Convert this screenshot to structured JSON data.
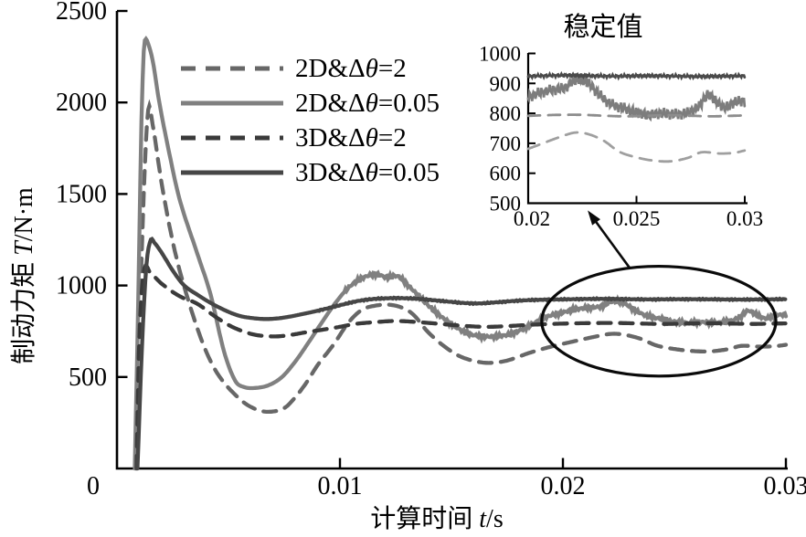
{
  "figure": {
    "background": "#ffffff",
    "axis_color": "#000000"
  },
  "chart_data": [
    {
      "id": "main",
      "type": "line",
      "title": "",
      "xlabel": "计算时间 t/s",
      "ylabel": "制动力矩 T/N·m",
      "xlabel_parts": {
        "prefix": "计算时间 ",
        "italic": "t",
        "suffix": "/s"
      },
      "ylabel_parts": {
        "prefix": "制动力矩 ",
        "italic": "T",
        "suffix": "/N·m"
      },
      "xlim": [
        0,
        0.03
      ],
      "ylim": [
        0,
        2500
      ],
      "x_ticks": [
        0,
        0.01,
        0.02,
        0.03
      ],
      "x_tick_labels": [
        "0",
        "0.01",
        "0.02",
        "0.03"
      ],
      "y_ticks": [
        500,
        1000,
        1500,
        2000,
        2500
      ],
      "y_tick_labels": [
        "500",
        "1000",
        "1500",
        "2000",
        "2500"
      ],
      "grid": false,
      "legend_position": "upper-center-left",
      "series": [
        {
          "name": "2D&Δθ=2",
          "style": "dashed",
          "color": "#676767",
          "inset_color": "#9f9f9f",
          "points": [
            [
              0.00085,
              0
            ],
            [
              0.001,
              700
            ],
            [
              0.0012,
              1500
            ],
            [
              0.0014,
              1960
            ],
            [
              0.0016,
              1880
            ],
            [
              0.002,
              1560
            ],
            [
              0.0025,
              1240
            ],
            [
              0.003,
              1000
            ],
            [
              0.0038,
              700
            ],
            [
              0.0045,
              520
            ],
            [
              0.0055,
              380
            ],
            [
              0.0062,
              325
            ],
            [
              0.0068,
              310
            ],
            [
              0.0075,
              330
            ],
            [
              0.008,
              390
            ],
            [
              0.0085,
              470
            ],
            [
              0.009,
              565
            ],
            [
              0.0097,
              675
            ],
            [
              0.0104,
              800
            ],
            [
              0.011,
              868
            ],
            [
              0.0116,
              890
            ],
            [
              0.0122,
              895
            ],
            [
              0.0128,
              878
            ],
            [
              0.0133,
              840
            ],
            [
              0.0139,
              752
            ],
            [
              0.0146,
              675
            ],
            [
              0.0153,
              618
            ],
            [
              0.016,
              588
            ],
            [
              0.0167,
              577
            ],
            [
              0.0175,
              590
            ],
            [
              0.0185,
              632
            ],
            [
              0.0195,
              667
            ],
            [
              0.0205,
              695
            ],
            [
              0.0215,
              722
            ],
            [
              0.0222,
              736
            ],
            [
              0.0228,
              730
            ],
            [
              0.0235,
              708
            ],
            [
              0.0242,
              672
            ],
            [
              0.025,
              653
            ],
            [
              0.0258,
              642
            ],
            [
              0.0266,
              640
            ],
            [
              0.0274,
              652
            ],
            [
              0.028,
              670
            ],
            [
              0.0288,
              666
            ],
            [
              0.0295,
              668
            ],
            [
              0.03,
              676
            ]
          ]
        },
        {
          "name": "2D&Δθ=0.05",
          "style": "solid",
          "color": "#808080",
          "inset_color": "#7d7d7d",
          "noise": {
            "start": 0.0102,
            "amplitude": 12
          },
          "points": [
            [
              0.0008,
              0
            ],
            [
              0.00095,
              900
            ],
            [
              0.0011,
              1900
            ],
            [
              0.0012,
              2280
            ],
            [
              0.00128,
              2345
            ],
            [
              0.0014,
              2320
            ],
            [
              0.0016,
              2230
            ],
            [
              0.0019,
              2000
            ],
            [
              0.0023,
              1750
            ],
            [
              0.0028,
              1475
            ],
            [
              0.0036,
              1175
            ],
            [
              0.0042,
              950
            ],
            [
              0.0048,
              640
            ],
            [
              0.0053,
              480
            ],
            [
              0.0057,
              445
            ],
            [
              0.0062,
              440
            ],
            [
              0.0068,
              455
            ],
            [
              0.0074,
              500
            ],
            [
              0.008,
              585
            ],
            [
              0.0086,
              690
            ],
            [
              0.0092,
              800
            ],
            [
              0.0098,
              905
            ],
            [
              0.0104,
              990
            ],
            [
              0.011,
              1040
            ],
            [
              0.0116,
              1062
            ],
            [
              0.0121,
              1045
            ],
            [
              0.0126,
              1050
            ],
            [
              0.0131,
              995
            ],
            [
              0.0136,
              935
            ],
            [
              0.0141,
              875
            ],
            [
              0.0147,
              815
            ],
            [
              0.0153,
              765
            ],
            [
              0.0158,
              735
            ],
            [
              0.0164,
              722
            ],
            [
              0.017,
              722
            ],
            [
              0.0176,
              733
            ],
            [
              0.0182,
              762
            ],
            [
              0.0188,
              800
            ],
            [
              0.0193,
              830
            ],
            [
              0.0199,
              850
            ],
            [
              0.0205,
              868
            ],
            [
              0.0211,
              878
            ],
            [
              0.0217,
              886
            ],
            [
              0.0222,
              912
            ],
            [
              0.0227,
              905
            ],
            [
              0.0232,
              868
            ],
            [
              0.0238,
              832
            ],
            [
              0.0244,
              818
            ],
            [
              0.025,
              802
            ],
            [
              0.0256,
              795
            ],
            [
              0.0262,
              800
            ],
            [
              0.0268,
              797
            ],
            [
              0.0274,
              803
            ],
            [
              0.0279,
              825
            ],
            [
              0.0283,
              862
            ],
            [
              0.0287,
              838
            ],
            [
              0.0291,
              820
            ],
            [
              0.0295,
              836
            ],
            [
              0.03,
              842
            ]
          ]
        },
        {
          "name": "3D&Δθ=2",
          "style": "dashed",
          "color": "#3a3a3a",
          "inset_color": "#8d8d8d",
          "points": [
            [
              0.00088,
              0
            ],
            [
              0.001,
              700
            ],
            [
              0.0012,
              1075
            ],
            [
              0.0015,
              1068
            ],
            [
              0.002,
              1010
            ],
            [
              0.0028,
              942
            ],
            [
              0.0036,
              900
            ],
            [
              0.0045,
              822
            ],
            [
              0.0052,
              772
            ],
            [
              0.006,
              736
            ],
            [
              0.0066,
              724
            ],
            [
              0.0072,
              722
            ],
            [
              0.0078,
              730
            ],
            [
              0.0085,
              745
            ],
            [
              0.0092,
              758
            ],
            [
              0.0099,
              772
            ],
            [
              0.0107,
              790
            ],
            [
              0.0116,
              800
            ],
            [
              0.0125,
              806
            ],
            [
              0.0135,
              800
            ],
            [
              0.0145,
              790
            ],
            [
              0.0155,
              780
            ],
            [
              0.0165,
              774
            ],
            [
              0.0175,
              778
            ],
            [
              0.0185,
              785
            ],
            [
              0.0195,
              790
            ],
            [
              0.0205,
              793
            ],
            [
              0.0215,
              795
            ],
            [
              0.0225,
              795
            ],
            [
              0.0235,
              792
            ],
            [
              0.0245,
              790
            ],
            [
              0.0255,
              792
            ],
            [
              0.0265,
              794
            ],
            [
              0.0275,
              792
            ],
            [
              0.0285,
              790
            ],
            [
              0.0295,
              792
            ],
            [
              0.03,
              793
            ]
          ]
        },
        {
          "name": "3D&Δθ=0.05",
          "style": "solid",
          "color": "#464646",
          "inset_color": "#4a4a4a",
          "noise": {
            "start": 0.009,
            "amplitude": 3
          },
          "points": [
            [
              0.00092,
              0
            ],
            [
              0.0011,
              600
            ],
            [
              0.0013,
              1080
            ],
            [
              0.0015,
              1245
            ],
            [
              0.0017,
              1230
            ],
            [
              0.002,
              1180
            ],
            [
              0.0025,
              1082
            ],
            [
              0.003,
              1002
            ],
            [
              0.0036,
              950
            ],
            [
              0.0043,
              898
            ],
            [
              0.005,
              856
            ],
            [
              0.0055,
              834
            ],
            [
              0.006,
              823
            ],
            [
              0.0066,
              817
            ],
            [
              0.0072,
              820
            ],
            [
              0.0078,
              831
            ],
            [
              0.0084,
              846
            ],
            [
              0.009,
              862
            ],
            [
              0.0096,
              880
            ],
            [
              0.0102,
              898
            ],
            [
              0.0108,
              915
            ],
            [
              0.0115,
              926
            ],
            [
              0.0125,
              931
            ],
            [
              0.0135,
              927
            ],
            [
              0.0145,
              916
            ],
            [
              0.0155,
              905
            ],
            [
              0.0162,
              902
            ],
            [
              0.017,
              908
            ],
            [
              0.018,
              917
            ],
            [
              0.019,
              922
            ],
            [
              0.02,
              924
            ],
            [
              0.021,
              926
            ],
            [
              0.022,
              927
            ],
            [
              0.023,
              925
            ],
            [
              0.024,
              924
            ],
            [
              0.025,
              925
            ],
            [
              0.026,
              925
            ],
            [
              0.027,
              924
            ],
            [
              0.028,
              923
            ],
            [
              0.029,
              924
            ],
            [
              0.03,
              925
            ]
          ]
        }
      ]
    },
    {
      "id": "inset",
      "type": "line",
      "title": "稳定值",
      "series_ref": "main",
      "xlim": [
        0.02,
        0.03
      ],
      "ylim": [
        500,
        1000
      ],
      "x_ticks": [
        0.02,
        0.025,
        0.03
      ],
      "x_tick_labels": [
        "0.02",
        "0.025",
        "0.03"
      ],
      "y_ticks": [
        500,
        600,
        700,
        800,
        900,
        1000
      ],
      "y_tick_labels": [
        "500",
        "600",
        "700",
        "800",
        "900",
        "1000"
      ],
      "grid": false
    }
  ],
  "annotations": {
    "ellipse": {
      "t_center": 0.0243,
      "T_center": 805,
      "t_radius": 0.00525,
      "T_radius": 300,
      "color": "#0a0a0a"
    },
    "arrow": {
      "from": {
        "t": 0.023,
        "T": 1095
      },
      "to": {
        "t": 0.02111,
        "T": 1410
      },
      "color": "#0a0a0a"
    }
  }
}
